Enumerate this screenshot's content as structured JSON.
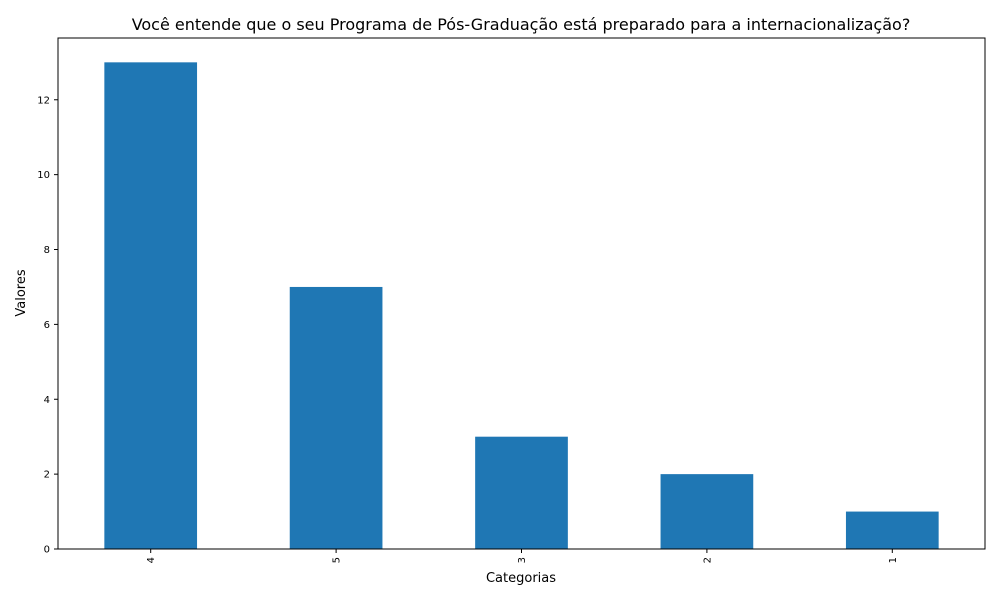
{
  "chart_data": {
    "type": "bar",
    "title": "Você entende que o seu Programa de Pós-Graduação está preparado para a internacionalização?",
    "xlabel": "Categorias",
    "ylabel": "Valores",
    "categories": [
      "4",
      "5",
      "3",
      "2",
      "1"
    ],
    "values": [
      13,
      7,
      3,
      2,
      1
    ],
    "ylim": [
      0,
      13.65
    ],
    "yticks": [
      0,
      2,
      4,
      6,
      8,
      10,
      12
    ],
    "x_tick_rotation": 90,
    "grid": false,
    "legend": "none",
    "bar_color": "#1f77b4"
  }
}
